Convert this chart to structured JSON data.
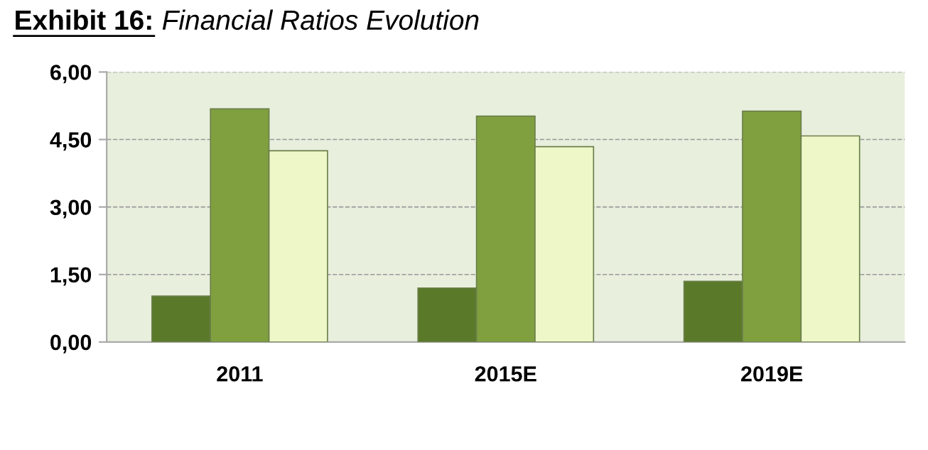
{
  "chart_data": {
    "type": "bar",
    "title": "Exhibit 16: Financial Ratios Evolution",
    "categories": [
      "2011",
      "2015E",
      "2019E"
    ],
    "series": [
      {
        "color": "#5a7a2a",
        "values": [
          1.02,
          1.2,
          1.35
        ]
      },
      {
        "color": "#80a040",
        "values": [
          5.18,
          5.02,
          5.13
        ]
      },
      {
        "color": "#eef7c8",
        "values": [
          4.25,
          4.34,
          4.58
        ]
      }
    ],
    "ylim": [
      0,
      6
    ],
    "yticks": [
      {
        "value": 0,
        "label": "0,00"
      },
      {
        "value": 1.5,
        "label": "1,50"
      },
      {
        "value": 3,
        "label": "3,00"
      },
      {
        "value": 4.5,
        "label": "4,50"
      },
      {
        "value": 6,
        "label": "6,00"
      }
    ],
    "grid": "y",
    "legend": false
  }
}
